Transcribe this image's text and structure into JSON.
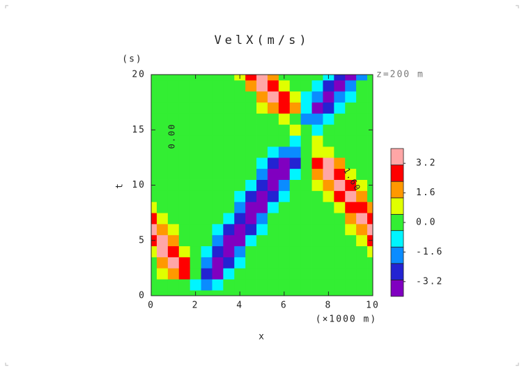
{
  "chart_data": {
    "type": "contour",
    "title": "VelX(m/s)",
    "x_label": "x",
    "x_unit": "(×1000 m)",
    "y_label": "t",
    "y_unit": "(s)",
    "annotation": "z=200 m",
    "contour_labels": [
      "0.00",
      "1.60"
    ],
    "x": [
      0,
      0.5,
      1,
      1.5,
      2,
      2.5,
      3,
      3.5,
      4,
      4.5,
      5,
      5.5,
      6,
      6.5,
      7,
      7.5,
      8,
      8.5,
      9,
      9.5,
      10
    ],
    "y": [
      0,
      1,
      2,
      3,
      4,
      5,
      6,
      7,
      8,
      9,
      10,
      11,
      12,
      13,
      14,
      15,
      16,
      17,
      18,
      19,
      20
    ],
    "z": [
      [
        0,
        0,
        0,
        0,
        0,
        0,
        0,
        0,
        0,
        0,
        0,
        0,
        0,
        0,
        0,
        0,
        0,
        0,
        0,
        0,
        0
      ],
      [
        0,
        0,
        0,
        0.4,
        -0.6,
        -1.5,
        -0.8,
        -0.2,
        0,
        0,
        0,
        0,
        0,
        0,
        0,
        0,
        0,
        0,
        0,
        0,
        0
      ],
      [
        0,
        0.5,
        2.0,
        3.0,
        0.3,
        -3.0,
        -3.2,
        -1.2,
        -0.2,
        0,
        0,
        0,
        0,
        0,
        0,
        0,
        0,
        0,
        0,
        0,
        0
      ],
      [
        0.4,
        1.8,
        3.4,
        2.7,
        0.3,
        -2.2,
        -3.8,
        -2.5,
        -0.7,
        0,
        0,
        0,
        0,
        0,
        0,
        0,
        0,
        0,
        0,
        0,
        0
      ],
      [
        1.3,
        3.2,
        3.1,
        1.3,
        0.1,
        -1.0,
        -3.0,
        -3.7,
        -1.9,
        -0.4,
        0,
        0,
        0,
        0,
        0,
        0,
        0,
        0,
        0,
        0.1,
        0.7
      ],
      [
        2.7,
        3.4,
        1.7,
        0.4,
        0,
        -0.3,
        -1.6,
        -3.5,
        -3.2,
        -1.2,
        -0.2,
        0,
        0,
        0,
        0,
        0,
        0,
        0,
        0.1,
        0.7,
        2.3
      ],
      [
        3.3,
        2.1,
        0.6,
        0,
        0,
        0,
        -0.6,
        -2.3,
        -3.8,
        -2.5,
        -0.7,
        -0.1,
        0,
        0,
        0,
        0,
        0,
        0,
        0.5,
        2.1,
        3.4
      ],
      [
        2.3,
        0.8,
        0.1,
        0,
        0,
        0,
        -0.1,
        -1.0,
        -3.0,
        -3.7,
        -1.9,
        -0.4,
        0,
        0,
        0,
        0,
        0,
        0.3,
        1.6,
        3.3,
        2.7
      ],
      [
        1.0,
        0.2,
        0,
        0,
        0,
        0,
        0,
        -0.3,
        -1.6,
        -3.5,
        -3.2,
        -1.2,
        -0.2,
        0,
        0,
        0,
        0.2,
        1.2,
        3.0,
        3.1,
        1.4
      ],
      [
        0,
        0,
        0,
        0,
        0,
        0,
        0,
        0,
        -0.6,
        -2.3,
        -3.8,
        -2.5,
        -0.7,
        -0.1,
        0,
        0.1,
        0.8,
        2.5,
        3.4,
        1.8,
        0.4
      ],
      [
        0,
        0,
        0,
        0,
        0,
        0,
        0,
        0,
        -0.1,
        -1.0,
        -3.0,
        -3.7,
        -1.9,
        -0.4,
        0,
        0.5,
        2.0,
        3.4,
        2.3,
        0.7,
        0.1
      ],
      [
        0,
        0,
        0,
        0,
        0,
        0,
        0,
        0,
        0,
        -0.3,
        -1.6,
        -3.5,
        -3.2,
        -1.2,
        0.1,
        1.5,
        3.2,
        2.8,
        1.0,
        0.2,
        0
      ],
      [
        0,
        0,
        0,
        0,
        0,
        0,
        0,
        0,
        0,
        0,
        -0.6,
        -2.3,
        -3.8,
        -2.3,
        0.4,
        2.8,
        3.2,
        1.4,
        0.3,
        0,
        0
      ],
      [
        0,
        0,
        0,
        0,
        0,
        0,
        0,
        0,
        0,
        0,
        0,
        -0.5,
        -1.6,
        -1.6,
        0.1,
        1.3,
        0.8,
        0.2,
        0,
        0,
        0
      ],
      [
        0,
        0,
        0,
        0,
        0,
        0,
        0,
        0,
        0,
        0,
        0,
        0,
        0,
        -0.9,
        0,
        0.5,
        0,
        0,
        0,
        0,
        0
      ],
      [
        0,
        0,
        0,
        0,
        0,
        0,
        0,
        0,
        0,
        0,
        0,
        0,
        0,
        0.9,
        0,
        -0.9,
        0,
        0,
        0,
        0,
        0
      ],
      [
        0,
        0,
        0,
        0,
        0,
        0,
        0,
        0,
        0,
        0,
        0,
        0.4,
        1.1,
        0.4,
        -1.5,
        -2.1,
        -0.8,
        -0.1,
        0,
        0,
        0
      ],
      [
        0,
        0,
        0,
        0,
        0,
        0,
        0,
        0,
        0,
        0,
        0.5,
        1.9,
        3.0,
        1.5,
        -1.3,
        -3.3,
        -2.6,
        -0.8,
        -0.1,
        0,
        0
      ],
      [
        0,
        0,
        0,
        0,
        0,
        0,
        0,
        0,
        0,
        0.4,
        1.8,
        3.3,
        2.6,
        0.8,
        -0.5,
        -2.2,
        -3.4,
        -2.2,
        -0.6,
        0,
        0
      ],
      [
        0,
        0,
        0,
        0,
        0,
        0,
        0,
        0,
        0.3,
        1.4,
        3.2,
        2.9,
        1.1,
        0.2,
        -0.1,
        -0.8,
        -2.6,
        -3.3,
        -1.8,
        -0.4,
        0
      ],
      [
        0,
        0,
        0,
        0,
        0,
        0,
        0,
        0.2,
        1.1,
        2.9,
        3.2,
        1.4,
        0.3,
        0,
        0,
        -0.2,
        -1.1,
        -2.9,
        -3.2,
        -1.4,
        -0.3
      ]
    ],
    "xlim": [
      0,
      10
    ],
    "xticks": [
      0,
      2,
      4,
      6,
      8,
      10
    ],
    "ylim": [
      0,
      20
    ],
    "yticks": [
      0,
      5,
      10,
      15,
      20
    ],
    "levels": [
      -4,
      -3.11,
      -2.22,
      -1.33,
      -0.44,
      0.44,
      1.33,
      2.22,
      3.11,
      4
    ],
    "colors": [
      "#8000c0",
      "#2323d2",
      "#0a8cff",
      "#00f5ff",
      "#33ee33",
      "#e0ff00",
      "#ff9800",
      "#ff0000",
      "#ffa6a6"
    ],
    "colorbar_ticks": [
      3.2,
      1.6,
      {
        "value": 0,
        "label": "0.0"
      },
      -1.6,
      -3.2
    ]
  }
}
